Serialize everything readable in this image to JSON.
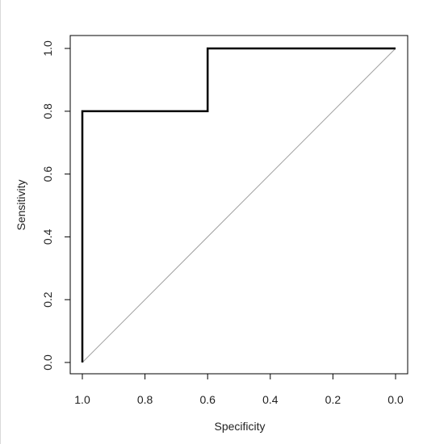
{
  "chart_data": {
    "type": "line",
    "xlabel": "Specificity",
    "ylabel": "Sensitivity",
    "xlim": [
      1.0,
      0.0
    ],
    "ylim": [
      0.0,
      1.0
    ],
    "x_ticks": [
      1.0,
      0.8,
      0.6,
      0.4,
      0.2,
      0.0
    ],
    "x_tick_labels": [
      "1.0",
      "0.8",
      "0.6",
      "0.4",
      "0.2",
      "0.0"
    ],
    "y_ticks": [
      0.0,
      0.2,
      0.4,
      0.6,
      0.8,
      1.0
    ],
    "y_tick_labels": [
      "0.0",
      "0.2",
      "0.4",
      "0.6",
      "0.8",
      "1.0"
    ],
    "grid": false,
    "series": [
      {
        "x": [
          1.0,
          1.0,
          0.6,
          0.6,
          0.0
        ],
        "y": [
          0.0,
          0.8,
          0.8,
          1.0,
          1.0
        ],
        "color": "#000000"
      }
    ],
    "reference_line": {
      "x": [
        1.0,
        0.0
      ],
      "y": [
        0.0,
        1.0
      ],
      "color": "#a0a0a0"
    }
  }
}
